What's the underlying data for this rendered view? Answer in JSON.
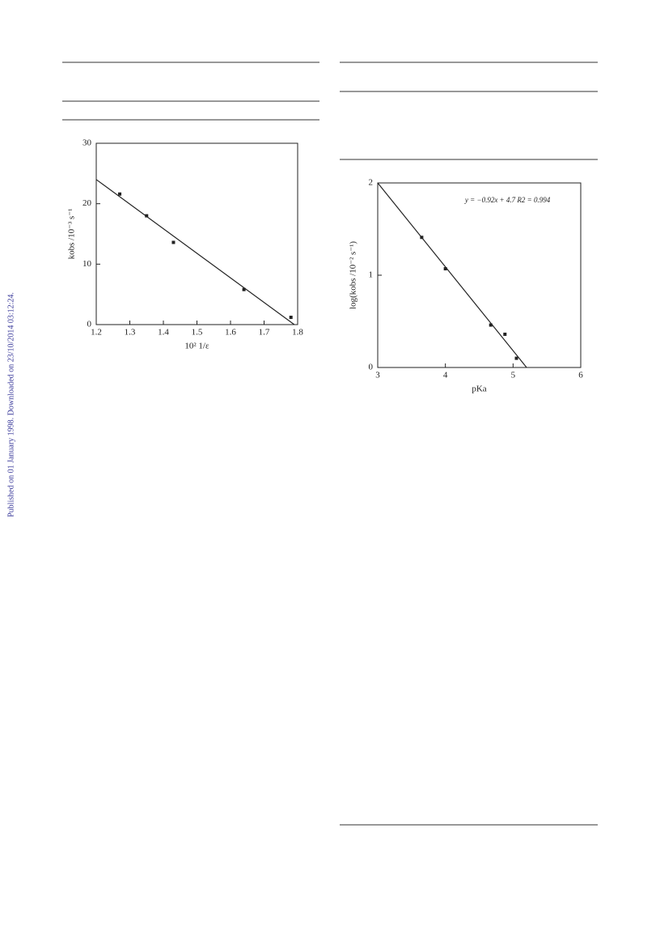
{
  "side_note": "Published on 01 January 1998. Downloaded on 23/10/2014 03:12:24.",
  "chart_data": [
    {
      "type": "scatter",
      "x_label": "10² 1/ε",
      "y_label": "kobs /10⁻³ s⁻¹",
      "xlim": [
        1.2,
        1.8
      ],
      "xticks": [
        1.2,
        1.3,
        1.4,
        1.5,
        1.6,
        1.7,
        1.8
      ],
      "ylim": [
        0,
        30
      ],
      "yticks": [
        0,
        10,
        20,
        30
      ],
      "color": "#222222",
      "series": [
        {
          "x": [
            1.27,
            1.35,
            1.43,
            1.64,
            1.78
          ],
          "values": [
            21.6,
            18,
            13.6,
            5.8,
            1.2
          ]
        }
      ],
      "fit": {
        "x": [
          1.2,
          1.79
        ],
        "values": [
          24,
          0
        ]
      }
    },
    {
      "type": "scatter",
      "x_label": "pKa",
      "y_label": "log(kobs /10⁻² s⁻¹)",
      "annotation": "y = −0.92x + 4.7   R2 = 0.994",
      "xlim": [
        3,
        6
      ],
      "xticks": [
        3,
        4,
        5,
        6
      ],
      "ylim": [
        0,
        2
      ],
      "yticks": [
        0,
        1,
        2
      ],
      "color": "#222222",
      "series": [
        {
          "x": [
            3.65,
            4.0,
            4.67,
            4.88,
            5.05
          ],
          "values": [
            1.41,
            1.07,
            0.46,
            0.36,
            0.1
          ]
        }
      ],
      "fit": {
        "x": [
          3,
          5.2
        ],
        "values": [
          2,
          0
        ]
      }
    }
  ]
}
